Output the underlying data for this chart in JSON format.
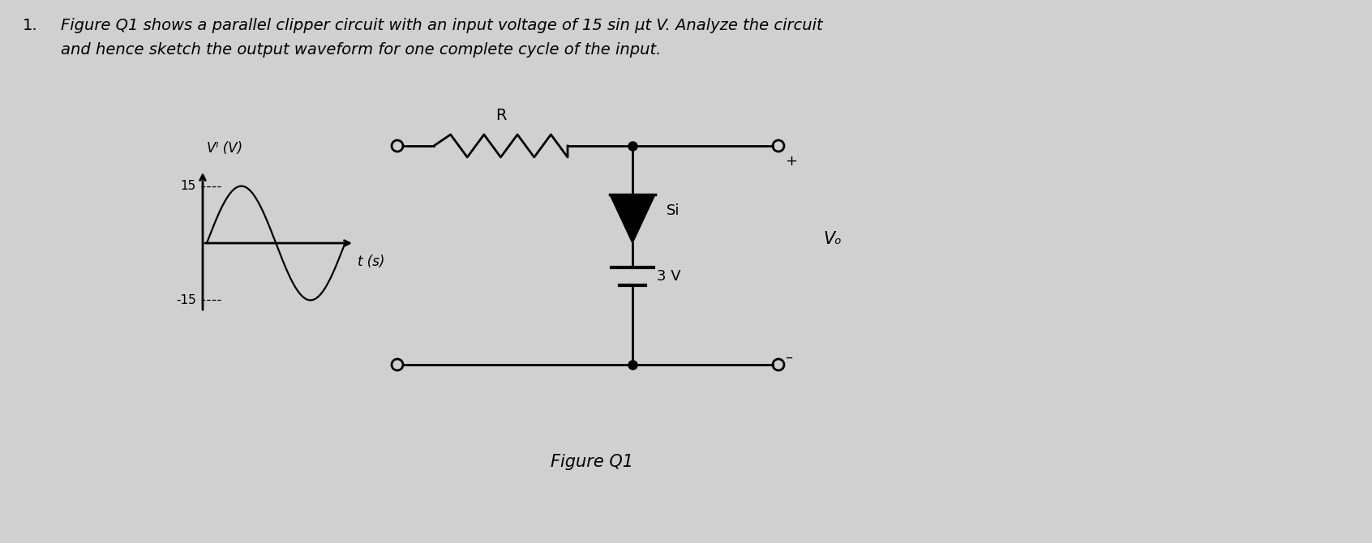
{
  "bg_color": "#d0d0d0",
  "text_color": "#000000",
  "title_number": "1.",
  "title_line1": "Figure Q1 shows a parallel clipper circuit with an input voltage of 15 sin μt V. Analyze the circuit",
  "title_line2": "and hence sketch the output waveform for one complete cycle of the input.",
  "figure_label": "Figure Q1",
  "R_label": "R",
  "Si_label": "Si",
  "Vo_label": "Vₒ",
  "Vi_label": "Vᴵ (V)",
  "t_label": "t (s)",
  "val_15": "15",
  "val_neg15": "-15",
  "val_3V": "3 V",
  "plus_sign": "+",
  "minus_sign": "–"
}
